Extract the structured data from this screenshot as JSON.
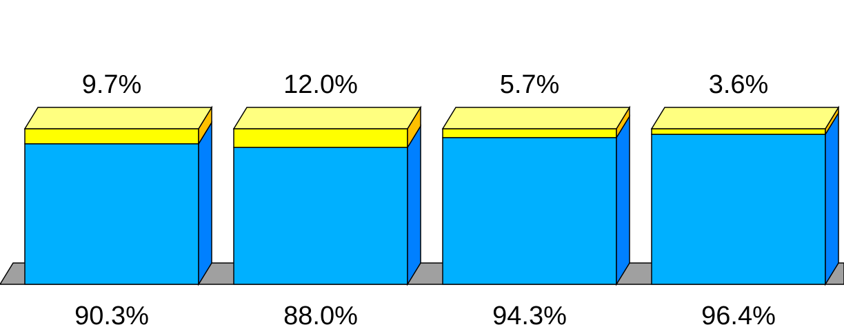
{
  "colors": {
    "primary_front": "#00B0FF",
    "primary_side": "#0080FF",
    "secondary_front": "#FFFF00",
    "secondary_top": "#FFFF80",
    "secondary_side": "#FFC000",
    "floor": "#A0A0A0",
    "outline": "#000000"
  },
  "chart_data": {
    "type": "bar",
    "stacked": true,
    "three_d": true,
    "normalized_to": 100,
    "categories": [
      "",
      "",
      "",
      ""
    ],
    "series": [
      {
        "values": [
          90.3,
          88.0,
          94.3,
          96.4
        ]
      },
      {
        "values": [
          9.7,
          12.0,
          5.7,
          3.6
        ]
      }
    ],
    "data_labels": {
      "bottom": [
        "90.3%",
        "88.0%",
        "94.3%",
        "96.4%"
      ],
      "top": [
        "9.7%",
        "12.0%",
        "5.7%",
        "3.6%"
      ]
    },
    "title": "",
    "xlabel": "",
    "ylabel": "",
    "ylim": [
      0,
      100
    ],
    "grid": false,
    "legend": "none"
  }
}
